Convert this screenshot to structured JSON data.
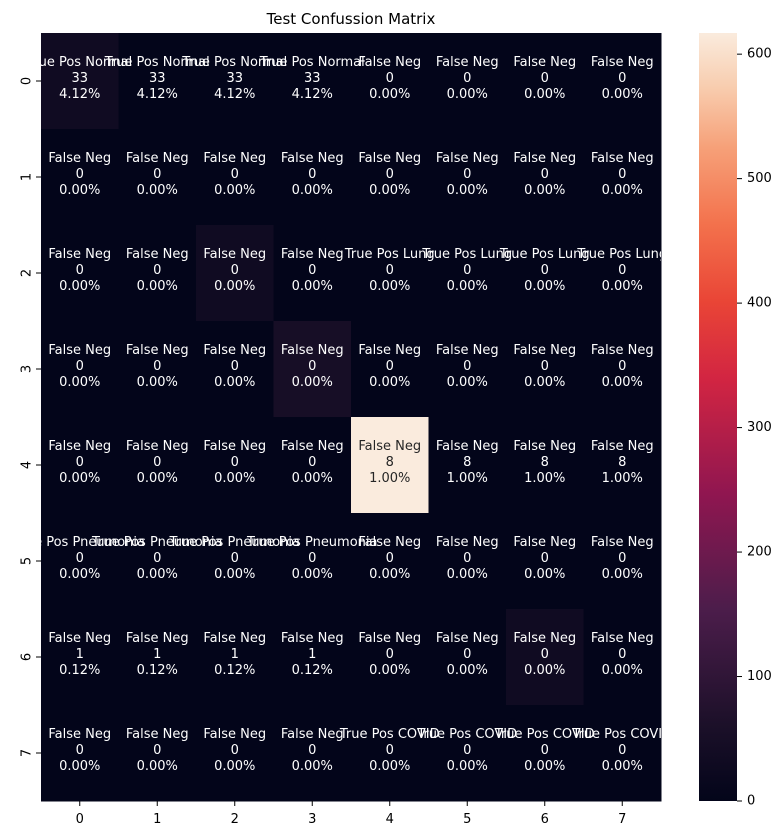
{
  "chart_data": {
    "type": "heatmap",
    "title": "Test Confussion Matrix",
    "xlabel": "",
    "ylabel": "",
    "x_ticks": [
      "0",
      "1",
      "2",
      "3",
      "4",
      "5",
      "6",
      "7"
    ],
    "y_ticks": [
      "0",
      "1",
      "2",
      "3",
      "4",
      "5",
      "6",
      "7"
    ],
    "color_values": [
      [
        33,
        0,
        0,
        0,
        0,
        0,
        0,
        0
      ],
      [
        0,
        0,
        0,
        0,
        0,
        0,
        0,
        0
      ],
      [
        0,
        0,
        33,
        0,
        0,
        0,
        0,
        0
      ],
      [
        0,
        0,
        0,
        50,
        0,
        0,
        0,
        0
      ],
      [
        0,
        0,
        0,
        0,
        617,
        0,
        0,
        0
      ],
      [
        0,
        0,
        0,
        0,
        0,
        0,
        0,
        0
      ],
      [
        0,
        0,
        0,
        0,
        0,
        0,
        33,
        0
      ],
      [
        0,
        0,
        0,
        0,
        0,
        0,
        0,
        0
      ]
    ],
    "cell_names": [
      [
        "True Pos Normal",
        "True Pos Normal",
        "True Pos Normal",
        "True Pos Normal",
        "False Neg",
        "False Neg",
        "False Neg",
        "False Neg"
      ],
      [
        "False Neg",
        "False Neg",
        "False Neg",
        "False Neg",
        "False Neg",
        "False Neg",
        "False Neg",
        "False Neg"
      ],
      [
        "False Neg",
        "False Neg",
        "False Neg",
        "False Neg",
        "True Pos Lung",
        "True Pos Lung",
        "True Pos Lung",
        "True Pos Lung"
      ],
      [
        "False Neg",
        "False Neg",
        "False Neg",
        "False Neg",
        "False Neg",
        "False Neg",
        "False Neg",
        "False Neg"
      ],
      [
        "False Neg",
        "False Neg",
        "False Neg",
        "False Neg",
        "False Neg",
        "False Neg",
        "False Neg",
        "False Neg"
      ],
      [
        "True Pos Pneumonia",
        "True Pos Pneumonia",
        "True Pos Pneumonia",
        "True Pos Pneumonia",
        "False Neg",
        "False Neg",
        "False Neg",
        "False Neg"
      ],
      [
        "False Neg",
        "False Neg",
        "False Neg",
        "False Neg",
        "False Neg",
        "False Neg",
        "False Neg",
        "False Neg"
      ],
      [
        "False Neg",
        "False Neg",
        "False Neg",
        "False Neg",
        "True Pos COVID",
        "True Pos COVID",
        "True Pos COVID",
        "True Pos COVID"
      ]
    ],
    "cell_counts": [
      [
        "33",
        "33",
        "33",
        "33",
        "0",
        "0",
        "0",
        "0"
      ],
      [
        "0",
        "0",
        "0",
        "0",
        "0",
        "0",
        "0",
        "0"
      ],
      [
        "0",
        "0",
        "0",
        "0",
        "0",
        "0",
        "0",
        "0"
      ],
      [
        "0",
        "0",
        "0",
        "0",
        "0",
        "0",
        "0",
        "0"
      ],
      [
        "0",
        "0",
        "0",
        "0",
        "8",
        "8",
        "8",
        "8"
      ],
      [
        "0",
        "0",
        "0",
        "0",
        "0",
        "0",
        "0",
        "0"
      ],
      [
        "1",
        "1",
        "1",
        "1",
        "0",
        "0",
        "0",
        "0"
      ],
      [
        "0",
        "0",
        "0",
        "0",
        "0",
        "0",
        "0",
        "0"
      ]
    ],
    "cell_percents": [
      [
        "4.12%",
        "4.12%",
        "4.12%",
        "4.12%",
        "0.00%",
        "0.00%",
        "0.00%",
        "0.00%"
      ],
      [
        "0.00%",
        "0.00%",
        "0.00%",
        "0.00%",
        "0.00%",
        "0.00%",
        "0.00%",
        "0.00%"
      ],
      [
        "0.00%",
        "0.00%",
        "0.00%",
        "0.00%",
        "0.00%",
        "0.00%",
        "0.00%",
        "0.00%"
      ],
      [
        "0.00%",
        "0.00%",
        "0.00%",
        "0.00%",
        "0.00%",
        "0.00%",
        "0.00%",
        "0.00%"
      ],
      [
        "0.00%",
        "0.00%",
        "0.00%",
        "0.00%",
        "1.00%",
        "1.00%",
        "1.00%",
        "1.00%"
      ],
      [
        "0.00%",
        "0.00%",
        "0.00%",
        "0.00%",
        "0.00%",
        "0.00%",
        "0.00%",
        "0.00%"
      ],
      [
        "0.12%",
        "0.12%",
        "0.12%",
        "0.12%",
        "0.00%",
        "0.00%",
        "0.00%",
        "0.00%"
      ],
      [
        "0.00%",
        "0.00%",
        "0.00%",
        "0.00%",
        "0.00%",
        "0.00%",
        "0.00%",
        "0.00%"
      ]
    ],
    "colorbar": {
      "vmin": 0,
      "vmax": 617,
      "ticks": [
        0,
        100,
        200,
        300,
        400,
        500,
        600
      ],
      "colormap": "rocket"
    },
    "grid": false,
    "legend": "colorbar-right"
  }
}
